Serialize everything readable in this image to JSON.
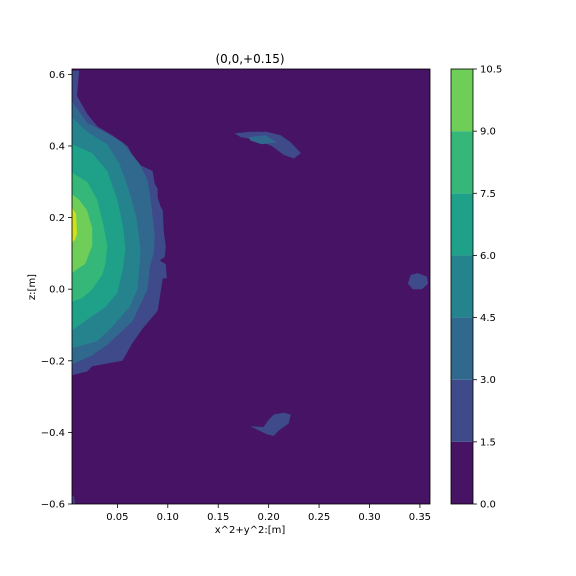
{
  "chart_data": {
    "type": "contourf",
    "title": "(0,0,+0.15)",
    "xlabel": "x^2+y^2:[m]",
    "ylabel": "z:[m]",
    "xlim": [
      0.005,
      0.36
    ],
    "ylim": [
      -0.6,
      0.615
    ],
    "x_ticks": [
      0.05,
      0.1,
      0.15,
      0.2,
      0.25,
      0.3,
      0.35
    ],
    "x_tick_labels": [
      "0.05",
      "0.10",
      "0.15",
      "0.20",
      "0.25",
      "0.30",
      "0.35"
    ],
    "y_ticks": [
      -0.6,
      -0.4,
      -0.2,
      0.0,
      0.2,
      0.4,
      0.6
    ],
    "y_tick_labels": [
      "−0.6",
      "−0.4",
      "−0.2",
      "0.0",
      "0.2",
      "0.4",
      "0.6"
    ],
    "colorbar": {
      "levels": [
        0.0,
        1.5,
        3.0,
        4.5,
        6.0,
        7.5,
        9.0,
        10.5
      ],
      "level_labels": [
        "0.0",
        "1.5",
        "3.0",
        "4.5",
        "6.0",
        "7.5",
        "9.0",
        "10.5"
      ],
      "colors": [
        "#471365",
        "#3e4a89",
        "#30688e",
        "#25838e",
        "#1fa088",
        "#35b779",
        "#6ece58",
        "#d0e11c"
      ]
    },
    "contour_regions": [
      {
        "level": 1,
        "polygon": [
          [
            0.005,
            0.61
          ],
          [
            0.012,
            0.61
          ],
          [
            0.01,
            0.54
          ],
          [
            0.02,
            0.49
          ],
          [
            0.03,
            0.455
          ],
          [
            0.045,
            0.43
          ],
          [
            0.06,
            0.4
          ],
          [
            0.07,
            0.35
          ],
          [
            0.085,
            0.33
          ],
          [
            0.087,
            0.295
          ],
          [
            0.09,
            0.28
          ],
          [
            0.09,
            0.255
          ],
          [
            0.093,
            0.23
          ],
          [
            0.095,
            0.22
          ],
          [
            0.096,
            0.16
          ],
          [
            0.098,
            0.12
          ],
          [
            0.097,
            0.09
          ],
          [
            0.092,
            0.08
          ],
          [
            0.098,
            0.07
          ],
          [
            0.099,
            0.03
          ],
          [
            0.095,
            0.03
          ],
          [
            0.09,
            -0.06
          ],
          [
            0.075,
            -0.11
          ],
          [
            0.065,
            -0.15
          ],
          [
            0.055,
            -0.2
          ],
          [
            0.025,
            -0.215
          ],
          [
            0.02,
            -0.23
          ],
          [
            0.005,
            -0.24
          ]
        ]
      },
      {
        "level": 1,
        "polygon": [
          [
            0.166,
            0.435
          ],
          [
            0.182,
            0.44
          ],
          [
            0.198,
            0.44
          ],
          [
            0.212,
            0.43
          ],
          [
            0.222,
            0.41
          ],
          [
            0.232,
            0.38
          ],
          [
            0.225,
            0.365
          ],
          [
            0.215,
            0.375
          ],
          [
            0.203,
            0.4
          ],
          [
            0.19,
            0.415
          ],
          [
            0.172,
            0.425
          ]
        ]
      },
      {
        "level": 1,
        "polygon": [
          [
            0.341,
            0.04
          ],
          [
            0.348,
            0.045
          ],
          [
            0.357,
            0.035
          ],
          [
            0.358,
            0.015
          ],
          [
            0.352,
            0.0
          ],
          [
            0.343,
            0.0
          ],
          [
            0.338,
            0.015
          ]
        ]
      },
      {
        "level": 1,
        "polygon": [
          [
            0.182,
            -0.383
          ],
          [
            0.195,
            -0.385
          ],
          [
            0.2,
            -0.365
          ],
          [
            0.205,
            -0.35
          ],
          [
            0.215,
            -0.345
          ],
          [
            0.222,
            -0.35
          ],
          [
            0.22,
            -0.375
          ],
          [
            0.21,
            -0.395
          ],
          [
            0.205,
            -0.41
          ],
          [
            0.198,
            -0.405
          ]
        ]
      },
      {
        "level": 2,
        "polygon": [
          [
            0.005,
            0.525
          ],
          [
            0.02,
            0.465
          ],
          [
            0.04,
            0.435
          ],
          [
            0.055,
            0.41
          ],
          [
            0.062,
            0.385
          ],
          [
            0.072,
            0.35
          ],
          [
            0.08,
            0.305
          ],
          [
            0.083,
            0.25
          ],
          [
            0.085,
            0.2
          ],
          [
            0.087,
            0.15
          ],
          [
            0.086,
            0.1
          ],
          [
            0.082,
            0.06
          ],
          [
            0.08,
            0.0
          ],
          [
            0.075,
            -0.03
          ],
          [
            0.065,
            -0.09
          ],
          [
            0.04,
            -0.155
          ],
          [
            0.025,
            -0.185
          ],
          [
            0.005,
            -0.21
          ]
        ]
      },
      {
        "level": 2,
        "polygon": [
          [
            0.18,
            0.425
          ],
          [
            0.197,
            0.43
          ],
          [
            0.208,
            0.41
          ],
          [
            0.193,
            0.405
          ],
          [
            0.182,
            0.415
          ]
        ]
      },
      {
        "level": 3,
        "polygon": [
          [
            0.005,
            0.48
          ],
          [
            0.02,
            0.44
          ],
          [
            0.04,
            0.405
          ],
          [
            0.052,
            0.35
          ],
          [
            0.061,
            0.28
          ],
          [
            0.069,
            0.2
          ],
          [
            0.072,
            0.13
          ],
          [
            0.073,
            0.1
          ],
          [
            0.07,
            0.0
          ],
          [
            0.062,
            -0.05
          ],
          [
            0.045,
            -0.105
          ],
          [
            0.03,
            -0.145
          ],
          [
            0.005,
            -0.165
          ]
        ]
      },
      {
        "level": 4,
        "polygon": [
          [
            0.005,
            0.405
          ],
          [
            0.025,
            0.38
          ],
          [
            0.04,
            0.33
          ],
          [
            0.05,
            0.25
          ],
          [
            0.056,
            0.17
          ],
          [
            0.058,
            0.11
          ],
          [
            0.055,
            0.05
          ],
          [
            0.05,
            -0.01
          ],
          [
            0.038,
            -0.05
          ],
          [
            0.02,
            -0.085
          ],
          [
            0.005,
            -0.115
          ]
        ]
      },
      {
        "level": 5,
        "polygon": [
          [
            0.005,
            0.325
          ],
          [
            0.02,
            0.3
          ],
          [
            0.03,
            0.25
          ],
          [
            0.036,
            0.18
          ],
          [
            0.04,
            0.12
          ],
          [
            0.038,
            0.07
          ],
          [
            0.035,
            0.04
          ],
          [
            0.025,
            0.0
          ],
          [
            0.015,
            -0.025
          ],
          [
            0.005,
            -0.035
          ]
        ]
      },
      {
        "level": 6,
        "polygon": [
          [
            0.005,
            0.265
          ],
          [
            0.012,
            0.25
          ],
          [
            0.02,
            0.22
          ],
          [
            0.025,
            0.17
          ],
          [
            0.025,
            0.12
          ],
          [
            0.022,
            0.1
          ],
          [
            0.018,
            0.07
          ],
          [
            0.012,
            0.06
          ],
          [
            0.005,
            0.045
          ]
        ]
      },
      {
        "level": 7,
        "polygon": [
          [
            0.005,
            0.228
          ],
          [
            0.009,
            0.21
          ],
          [
            0.01,
            0.155
          ],
          [
            0.008,
            0.138
          ],
          [
            0.005,
            0.13
          ]
        ]
      },
      {
        "level": 1,
        "polygon": [
          [
            0.005,
            -0.575
          ],
          [
            0.006,
            -0.6
          ],
          [
            0.008,
            -0.6
          ],
          [
            0.007,
            -0.58
          ]
        ]
      }
    ]
  }
}
